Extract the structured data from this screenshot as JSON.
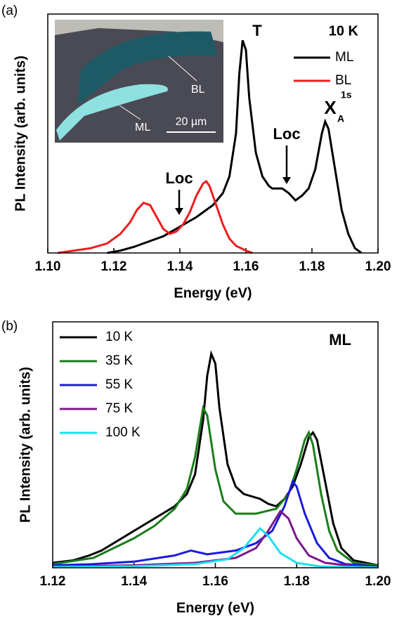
{
  "chart_data": [
    {
      "type": "line",
      "panel_label": "(a)",
      "xlabel": "Energy (eV)",
      "ylabel": "PL Intensity (arb. units)",
      "xlim": [
        1.1,
        1.2
      ],
      "ylim": [
        0,
        1
      ],
      "xticks": [
        {
          "value": 1.1,
          "label": "1.10"
        },
        1.12,
        1.14,
        1.16,
        1.18,
        {
          "value": 1.2,
          "label": "1.20"
        }
      ],
      "legend": "upper right",
      "legend_title": "10 K",
      "annotations": [
        "T",
        "Loc",
        "Loc",
        "X",
        "1s",
        "A"
      ],
      "inset_labels": [
        "BL",
        "ML",
        "20 µm"
      ],
      "series": [
        {
          "name": "ML",
          "color": "#000000",
          "x": [
            1.118,
            1.122,
            1.126,
            1.129,
            1.131,
            1.135,
            1.14,
            1.145,
            1.15,
            1.153,
            1.155,
            1.157,
            1.158,
            1.159,
            1.16,
            1.161,
            1.163,
            1.165,
            1.167,
            1.168,
            1.169,
            1.171,
            1.173,
            1.175,
            1.177,
            1.179,
            1.181,
            1.183,
            1.184,
            1.185,
            1.187,
            1.189,
            1.191,
            1.193,
            1.195
          ],
          "values": [
            0.0,
            0.01,
            0.025,
            0.04,
            0.05,
            0.07,
            0.11,
            0.15,
            0.2,
            0.25,
            0.32,
            0.5,
            0.75,
            0.89,
            0.85,
            0.65,
            0.42,
            0.32,
            0.28,
            0.27,
            0.27,
            0.27,
            0.25,
            0.22,
            0.24,
            0.27,
            0.35,
            0.5,
            0.55,
            0.52,
            0.35,
            0.18,
            0.08,
            0.02,
            0.0
          ]
        },
        {
          "name": "BL",
          "color": "#ee1c1c",
          "x": [
            1.103,
            1.108,
            1.113,
            1.118,
            1.122,
            1.125,
            1.127,
            1.129,
            1.131,
            1.133,
            1.135,
            1.137,
            1.139,
            1.141,
            1.143,
            1.145,
            1.147,
            1.148,
            1.149,
            1.151,
            1.153,
            1.155,
            1.157,
            1.16,
            1.162
          ],
          "values": [
            0.0,
            0.01,
            0.02,
            0.04,
            0.08,
            0.13,
            0.18,
            0.21,
            0.2,
            0.15,
            0.1,
            0.08,
            0.09,
            0.12,
            0.17,
            0.24,
            0.29,
            0.3,
            0.28,
            0.2,
            0.12,
            0.06,
            0.03,
            0.01,
            0.0
          ]
        }
      ]
    },
    {
      "type": "line",
      "panel_label": "(b)",
      "xlabel": "Energy (eV)",
      "ylabel": "PL Intensity (arb. units)",
      "xlim": [
        1.12,
        1.2
      ],
      "ylim": [
        0,
        1
      ],
      "xticks": [
        1.12,
        1.14,
        1.16,
        1.18,
        {
          "value": 1.2,
          "label": "1.20"
        }
      ],
      "legend": "upper left",
      "annotations": [
        "ML"
      ],
      "series": [
        {
          "name": "10 K",
          "color": "#000000",
          "x": [
            1.12,
            1.125,
            1.129,
            1.132,
            1.136,
            1.14,
            1.145,
            1.15,
            1.153,
            1.155,
            1.157,
            1.158,
            1.159,
            1.16,
            1.161,
            1.163,
            1.165,
            1.167,
            1.169,
            1.171,
            1.173,
            1.175,
            1.177,
            1.179,
            1.181,
            1.183,
            1.184,
            1.185,
            1.187,
            1.189,
            1.191,
            1.194,
            1.2
          ],
          "values": [
            0.02,
            0.03,
            0.05,
            0.07,
            0.11,
            0.15,
            0.2,
            0.25,
            0.3,
            0.38,
            0.6,
            0.78,
            0.87,
            0.83,
            0.65,
            0.42,
            0.33,
            0.3,
            0.29,
            0.28,
            0.26,
            0.25,
            0.28,
            0.33,
            0.42,
            0.53,
            0.55,
            0.52,
            0.35,
            0.18,
            0.08,
            0.03,
            0.01
          ]
        },
        {
          "name": "35 K",
          "color": "#1a7d1a",
          "x": [
            1.12,
            1.13,
            1.14,
            1.145,
            1.15,
            1.153,
            1.155,
            1.157,
            1.158,
            1.16,
            1.162,
            1.165,
            1.17,
            1.175,
            1.178,
            1.18,
            1.182,
            1.183,
            1.184,
            1.186,
            1.188,
            1.19,
            1.194,
            1.2
          ],
          "values": [
            0.015,
            0.04,
            0.12,
            0.17,
            0.24,
            0.32,
            0.45,
            0.65,
            0.62,
            0.4,
            0.27,
            0.22,
            0.22,
            0.24,
            0.3,
            0.4,
            0.52,
            0.55,
            0.5,
            0.3,
            0.15,
            0.07,
            0.02,
            0.01
          ]
        },
        {
          "name": "55 K",
          "color": "#1a1ae0",
          "x": [
            1.12,
            1.13,
            1.14,
            1.15,
            1.154,
            1.158,
            1.165,
            1.17,
            1.174,
            1.177,
            1.179,
            1.18,
            1.182,
            1.185,
            1.188,
            1.192,
            1.2
          ],
          "values": [
            0.01,
            0.015,
            0.025,
            0.05,
            0.07,
            0.055,
            0.07,
            0.1,
            0.15,
            0.25,
            0.35,
            0.33,
            0.22,
            0.1,
            0.04,
            0.015,
            0.005
          ]
        },
        {
          "name": "75 K",
          "color": "#7a1a8a",
          "x": [
            1.12,
            1.14,
            1.155,
            1.165,
            1.17,
            1.173,
            1.176,
            1.178,
            1.18,
            1.183,
            1.187,
            1.195,
            1.2
          ],
          "values": [
            0.005,
            0.01,
            0.02,
            0.04,
            0.08,
            0.15,
            0.23,
            0.2,
            0.12,
            0.05,
            0.02,
            0.005,
            0.002
          ]
        },
        {
          "name": "100 K",
          "color": "#19e0f0",
          "x": [
            1.12,
            1.14,
            1.155,
            1.163,
            1.167,
            1.171,
            1.173,
            1.176,
            1.18,
            1.186,
            1.2
          ],
          "values": [
            0.003,
            0.006,
            0.015,
            0.035,
            0.08,
            0.16,
            0.13,
            0.06,
            0.02,
            0.005,
            0.001
          ]
        }
      ]
    }
  ]
}
